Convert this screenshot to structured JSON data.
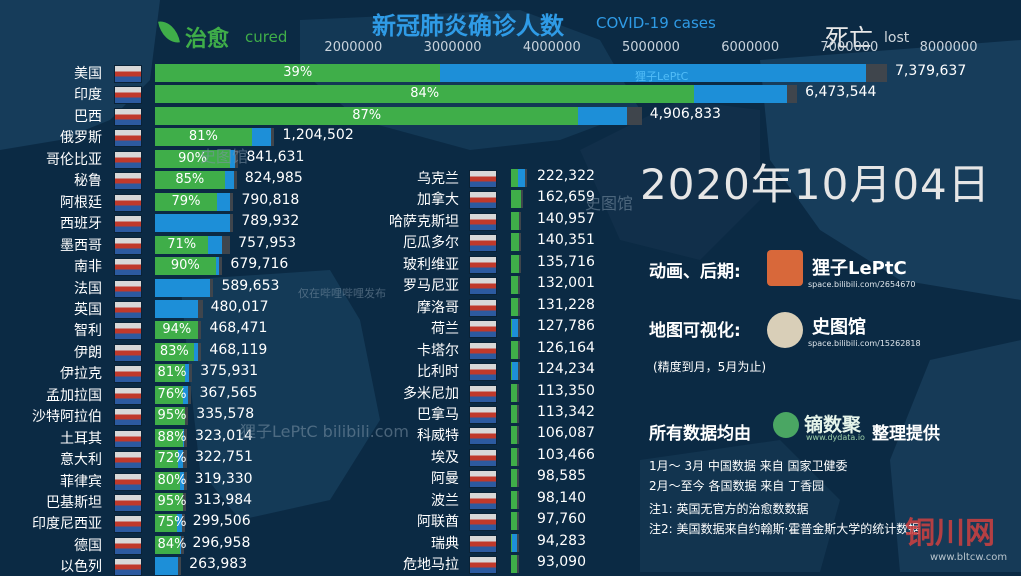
{
  "title": "新冠肺炎确诊人数",
  "title_en": "COVID-19 cases",
  "legend": {
    "cured": "治愈",
    "cured_en": "cured",
    "dead": "死亡",
    "dead_en": "lost"
  },
  "date": "2020年10月04日",
  "credits": {
    "animation_label": "动画、后期:",
    "animation_author": "狸子LePtC",
    "animation_url": "space.bilibili.com/2654670",
    "map_label": "地图可视化:",
    "map_author": "史图馆",
    "map_url": "space.bilibili.com/15262818",
    "map_note": "(精度到月，5月为止)",
    "data_label_pre": "所有数据均由",
    "data_brand": "镝数聚",
    "data_brand_url": "www.dydata.io",
    "data_label_post": "整理提供",
    "source1": "1月～ 3月  中国数据  来自  国家卫健委",
    "source2": "2月～至今  各国数据  来自  丁香园",
    "note1": "注1: 英国无官方的治愈数数据",
    "note2": "注2: 美国数据来自约翰斯·霍普金斯大学的统计数据"
  },
  "watermarks": {
    "bar_overlay": "狸子LePtC",
    "bilibili": "狸子LePtC bilibili.com",
    "cn1": "史图馆",
    "cn2": "史图馆",
    "cn3": "仅在哔哩哔哩发布",
    "site": "铜川网",
    "site_url": "www.bltcw.com"
  },
  "colors": {
    "cured": "#3fae49",
    "active": "#1d8fd8",
    "dead": "#3f454c",
    "title": "#2f9be6",
    "background": "#0b2a44"
  },
  "chart_data": {
    "type": "bar",
    "title": "新冠肺炎确诊人数",
    "subtitle": "COVID-19 cases",
    "x_ticks": [
      2000000,
      3000000,
      4000000,
      5000000,
      6000000,
      7000000,
      8000000
    ],
    "xlim": [
      0,
      8000000
    ],
    "legend": [
      "治愈 cured",
      "死亡 lost"
    ],
    "series": [
      {
        "column": "left",
        "countries": [
          {
            "name": "美国",
            "total": 7379637,
            "cured_pct": "39%",
            "dead_share": 0.029
          },
          {
            "name": "印度",
            "total": 6473544,
            "cured_pct": "84%",
            "dead_share": 0.016
          },
          {
            "name": "巴西",
            "total": 4906833,
            "cured_pct": "87%",
            "dead_share": 0.03
          },
          {
            "name": "俄罗斯",
            "total": 1204502,
            "cured_pct": "81%",
            "dead_share": 0.018
          },
          {
            "name": "哥伦比亚",
            "total": 841631,
            "cured_pct": "90%",
            "dead_share": 0.031
          },
          {
            "name": "秘鲁",
            "total": 824985,
            "cured_pct": "85%",
            "dead_share": 0.04
          },
          {
            "name": "阿根廷",
            "total": 790818,
            "cured_pct": "79%",
            "dead_share": 0.026
          },
          {
            "name": "西班牙",
            "total": 789932,
            "cured_pct": "",
            "dead_share": 0.041
          },
          {
            "name": "墨西哥",
            "total": 757953,
            "cured_pct": "71%",
            "dead_share": 0.104
          },
          {
            "name": "南非",
            "total": 679716,
            "cured_pct": "90%",
            "dead_share": 0.025
          },
          {
            "name": "法国",
            "total": 589653,
            "cured_pct": "",
            "dead_share": 0.055
          },
          {
            "name": "英国",
            "total": 480017,
            "cured_pct": "",
            "dead_share": 0.088
          },
          {
            "name": "智利",
            "total": 468471,
            "cured_pct": "94%",
            "dead_share": 0.028
          },
          {
            "name": "伊朗",
            "total": 468119,
            "cured_pct": "83%",
            "dead_share": 0.057
          },
          {
            "name": "伊拉克",
            "total": 375931,
            "cured_pct": "81%",
            "dead_share": 0.025
          },
          {
            "name": "孟加拉国",
            "total": 367565,
            "cured_pct": "76%",
            "dead_share": 0.014
          },
          {
            "name": "沙特阿拉伯",
            "total": 335578,
            "cured_pct": "95%",
            "dead_share": 0.015
          },
          {
            "name": "土耳其",
            "total": 323014,
            "cured_pct": "88%",
            "dead_share": 0.026
          },
          {
            "name": "意大利",
            "total": 322751,
            "cured_pct": "72%",
            "dead_share": 0.111
          },
          {
            "name": "菲律宾",
            "total": 319330,
            "cured_pct": "80%",
            "dead_share": 0.018
          },
          {
            "name": "巴基斯坦",
            "total": 313984,
            "cured_pct": "95%",
            "dead_share": 0.021
          },
          {
            "name": "印度尼西亚",
            "total": 299506,
            "cured_pct": "75%",
            "dead_share": 0.037
          },
          {
            "name": "德国",
            "total": 296958,
            "cured_pct": "84%",
            "dead_share": 0.032
          },
          {
            "name": "以色列",
            "total": 263983,
            "cured_pct": "",
            "dead_share": 0.006
          }
        ]
      },
      {
        "column": "right",
        "countries": [
          {
            "name": "乌克兰",
            "total": 222322,
            "cured_share": 0.44,
            "dead_share": 0.02
          },
          {
            "name": "加拿大",
            "total": 162659,
            "cured_share": 0.85,
            "dead_share": 0.058
          },
          {
            "name": "哈萨克斯坦",
            "total": 140957,
            "cured_share": 0.95,
            "dead_share": 0.015
          },
          {
            "name": "厄瓜多尔",
            "total": 140351,
            "cured_share": 0.85,
            "dead_share": 0.084
          },
          {
            "name": "玻利维亚",
            "total": 135716,
            "cured_share": 0.8,
            "dead_share": 0.06
          },
          {
            "name": "罗马尼亚",
            "total": 132001,
            "cured_share": 0.78,
            "dead_share": 0.037
          },
          {
            "name": "摩洛哥",
            "total": 131228,
            "cured_share": 0.84,
            "dead_share": 0.017
          },
          {
            "name": "荷兰",
            "total": 127786,
            "cured_share": 0.02,
            "dead_share": 0.05
          },
          {
            "name": "卡塔尔",
            "total": 126164,
            "cured_share": 0.97,
            "dead_share": 0.002
          },
          {
            "name": "比利时",
            "total": 124234,
            "cured_share": 0.15,
            "dead_share": 0.081
          },
          {
            "name": "多米尼加",
            "total": 113350,
            "cured_share": 0.8,
            "dead_share": 0.019
          },
          {
            "name": "巴拿马",
            "total": 113342,
            "cured_share": 0.84,
            "dead_share": 0.021
          },
          {
            "name": "科威特",
            "total": 106087,
            "cured_share": 0.92,
            "dead_share": 0.006
          },
          {
            "name": "埃及",
            "total": 103466,
            "cured_share": 0.9,
            "dead_share": 0.058
          },
          {
            "name": "阿曼",
            "total": 98585,
            "cured_share": 0.88,
            "dead_share": 0.009
          },
          {
            "name": "波兰",
            "total": 98140,
            "cured_share": 0.71,
            "dead_share": 0.026
          },
          {
            "name": "阿联酋",
            "total": 97760,
            "cured_share": 0.89,
            "dead_share": 0.004
          },
          {
            "name": "瑞典",
            "total": 94283,
            "cured_share": 0.01,
            "dead_share": 0.062
          },
          {
            "name": "危地马拉",
            "total": 93090,
            "cured_share": 0.86,
            "dead_share": 0.035
          }
        ]
      }
    ]
  }
}
